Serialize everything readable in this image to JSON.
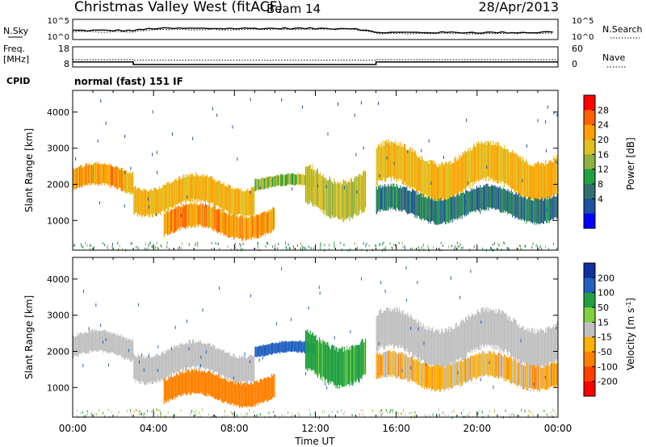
{
  "header": {
    "station": "Christmas Valley West (fitACF)",
    "beam": "Beam 14",
    "date": "28/Apr/2013",
    "cpid_label": "CPID",
    "cpid_value": "normal (fast) 151 IF"
  },
  "colors": {
    "background": "#ffffff",
    "axis": "#000000",
    "velocity_ground_scatter": "#c0c0c0"
  },
  "chart_data": [
    {
      "type": "line",
      "panel": "noise",
      "left_label": "N.Sky",
      "right_label": "N.Search",
      "left_ticks": [
        "10^5",
        "10^0"
      ],
      "right_ticks": [
        "10^5",
        "10^0"
      ],
      "x_hours": [
        0,
        1,
        2,
        3,
        4,
        5,
        6,
        7,
        8,
        9,
        10,
        11,
        12,
        13,
        14,
        15,
        16,
        17,
        18,
        19,
        20,
        21,
        22,
        23,
        24
      ],
      "series": [
        {
          "name": "N.Sky",
          "style": "solid",
          "values": [
            0.45,
            0.45,
            0.45,
            0.45,
            0.55,
            0.55,
            0.55,
            0.55,
            0.55,
            0.55,
            0.55,
            0.55,
            0.55,
            0.55,
            0.55,
            0.35,
            0.35,
            0.35,
            0.35,
            0.35,
            0.35,
            0.35,
            0.35,
            0.35,
            0.4
          ]
        },
        {
          "name": "N.Search",
          "style": "dotted",
          "values": [
            0.38,
            0.38,
            0.38,
            0.38,
            0.5,
            0.5,
            0.5,
            0.5,
            0.5,
            0.5,
            0.5,
            0.5,
            0.5,
            0.5,
            0.5,
            0.3,
            0.3,
            0.3,
            0.3,
            0.3,
            0.3,
            0.3,
            0.3,
            0.3,
            0.33
          ]
        }
      ]
    },
    {
      "type": "line",
      "panel": "frequency",
      "left_label_top": "Freq.",
      "left_label_bottom": "[MHz]",
      "right_label": "Nave",
      "left_ticks": [
        "18",
        "8"
      ],
      "right_ticks": [
        "60",
        "0"
      ],
      "series": [
        {
          "name": "Freq.",
          "style": "solid",
          "steps": [
            {
              "from": 0,
              "to": 3,
              "value": 10.5
            },
            {
              "from": 3,
              "to": 15,
              "value": 9.2
            },
            {
              "from": 15,
              "to": 24,
              "value": 10.5
            }
          ]
        },
        {
          "name": "Nave",
          "style": "dotted",
          "steps": [
            {
              "from": 0,
              "to": 3,
              "value": 22
            },
            {
              "from": 3,
              "to": 15,
              "value": 20
            },
            {
              "from": 15,
              "to": 24,
              "value": 22
            }
          ]
        }
      ]
    },
    {
      "type": "heatmap",
      "panel": "power",
      "ylabel": "Slant Range [km]",
      "yticks": [
        "4000",
        "3000",
        "2000",
        "1000"
      ],
      "ylim": [
        180,
        4600
      ],
      "xlim": [
        0,
        24
      ],
      "colorbar_label": "Power [dB]",
      "colorbar_ticks": [
        "28",
        "24",
        "20",
        "16",
        "12",
        "8",
        "4"
      ],
      "colorbar_colors": [
        "#ff0000",
        "#ff6000",
        "#ffa000",
        "#e0c020",
        "#90b040",
        "#20a040",
        "#307070",
        "#2050a0",
        "#0000ff"
      ],
      "echo_bands": [
        {
          "t": [
            0,
            3
          ],
          "r": [
            1650,
            2600
          ],
          "level": 24
        },
        {
          "t": [
            3,
            9
          ],
          "r": [
            1100,
            2300
          ],
          "level": 22
        },
        {
          "t": [
            4.5,
            10
          ],
          "r": [
            450,
            1500
          ],
          "level": 25
        },
        {
          "t": [
            9,
            12
          ],
          "r": [
            1800,
            2300
          ],
          "level": 16
        },
        {
          "t": [
            11.5,
            14.5
          ],
          "r": [
            1000,
            2700
          ],
          "level": 18
        },
        {
          "t": [
            15,
            24
          ],
          "r": [
            1500,
            3200
          ],
          "level": 22
        },
        {
          "t": [
            15,
            24
          ],
          "r": [
            900,
            2000
          ],
          "level": 8
        }
      ]
    },
    {
      "type": "heatmap",
      "panel": "velocity",
      "ylabel": "Slant Range [km]",
      "yticks": [
        "4000",
        "3000",
        "2000",
        "1000"
      ],
      "ylim": [
        180,
        4600
      ],
      "xlim": [
        0,
        24
      ],
      "xticks": [
        "00:00",
        "04:00",
        "08:00",
        "12:00",
        "16:00",
        "20:00",
        "00:00"
      ],
      "xlabel": "Time UT",
      "colorbar_label": "Velocity [m s",
      "colorbar_label_sup": "-1",
      "colorbar_label_end": "]",
      "colorbar_ticks": [
        "200",
        "100",
        "50",
        "15",
        "-15",
        "-50",
        "-100",
        "-200"
      ],
      "colorbar_colors": [
        "#1030a0",
        "#2060c0",
        "#20a040",
        "#80d040",
        "#c0c0c0",
        "#ffb000",
        "#ff8000",
        "#ff4000",
        "#ff0000"
      ],
      "echo_bands": [
        {
          "t": [
            0,
            3
          ],
          "r": [
            1650,
            2600
          ],
          "velocity": 0
        },
        {
          "t": [
            3,
            9
          ],
          "r": [
            1100,
            2300
          ],
          "velocity": 0
        },
        {
          "t": [
            4.5,
            10
          ],
          "r": [
            450,
            1500
          ],
          "velocity": -60
        },
        {
          "t": [
            9,
            12
          ],
          "r": [
            1800,
            2300
          ],
          "velocity": 120
        },
        {
          "t": [
            11.5,
            14.5
          ],
          "r": [
            1000,
            2700
          ],
          "velocity": 40
        },
        {
          "t": [
            15,
            24
          ],
          "r": [
            1500,
            3200
          ],
          "velocity": 0
        },
        {
          "t": [
            15,
            24
          ],
          "r": [
            900,
            2000
          ],
          "velocity": -20
        }
      ]
    }
  ]
}
